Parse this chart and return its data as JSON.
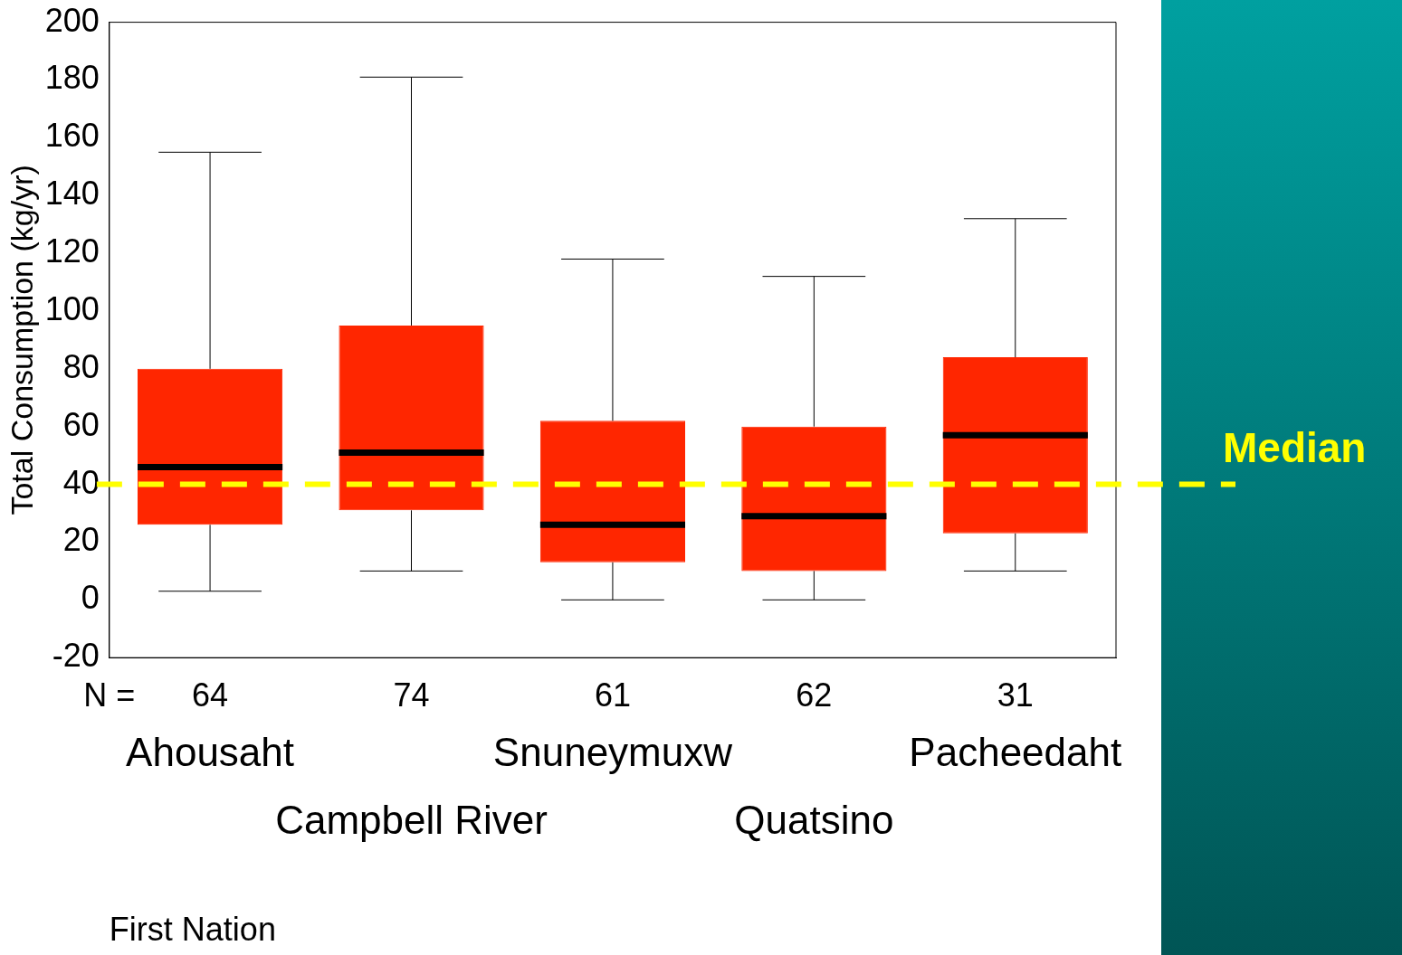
{
  "chart_data": {
    "type": "box",
    "ylabel": "Total Consumption (kg/yr)",
    "xlabel": "First Nation",
    "categories": [
      "Ahousaht",
      "Campbell River",
      "Snuneymuxw",
      "Quatsino",
      "Pacheedaht"
    ],
    "series": [
      {
        "color": "#ff2600",
        "boxes": [
          {
            "low": 3,
            "q1": 26,
            "median": 46,
            "q3": 80,
            "high": 155
          },
          {
            "low": 10,
            "q1": 31,
            "median": 51,
            "q3": 95,
            "high": 181
          },
          {
            "low": 0,
            "q1": 13,
            "median": 26,
            "q3": 62,
            "high": 118
          },
          {
            "low": 0,
            "q1": 10,
            "median": 29,
            "q3": 60,
            "high": 112
          },
          {
            "low": 10,
            "q1": 23,
            "median": 57,
            "q3": 84,
            "high": 132
          }
        ]
      }
    ],
    "ylim": [
      -20,
      200
    ],
    "yticks": [
      -20,
      0,
      20,
      40,
      60,
      80,
      100,
      120,
      140,
      160,
      180,
      200
    ],
    "grid": false,
    "ref_lines": [
      {
        "axis": "y",
        "value": 40,
        "label": "Median",
        "color": "#ffff00",
        "line_style": "dashed"
      }
    ],
    "annotations": [
      "N =",
      "64",
      "74",
      "61",
      "62",
      "31"
    ]
  }
}
